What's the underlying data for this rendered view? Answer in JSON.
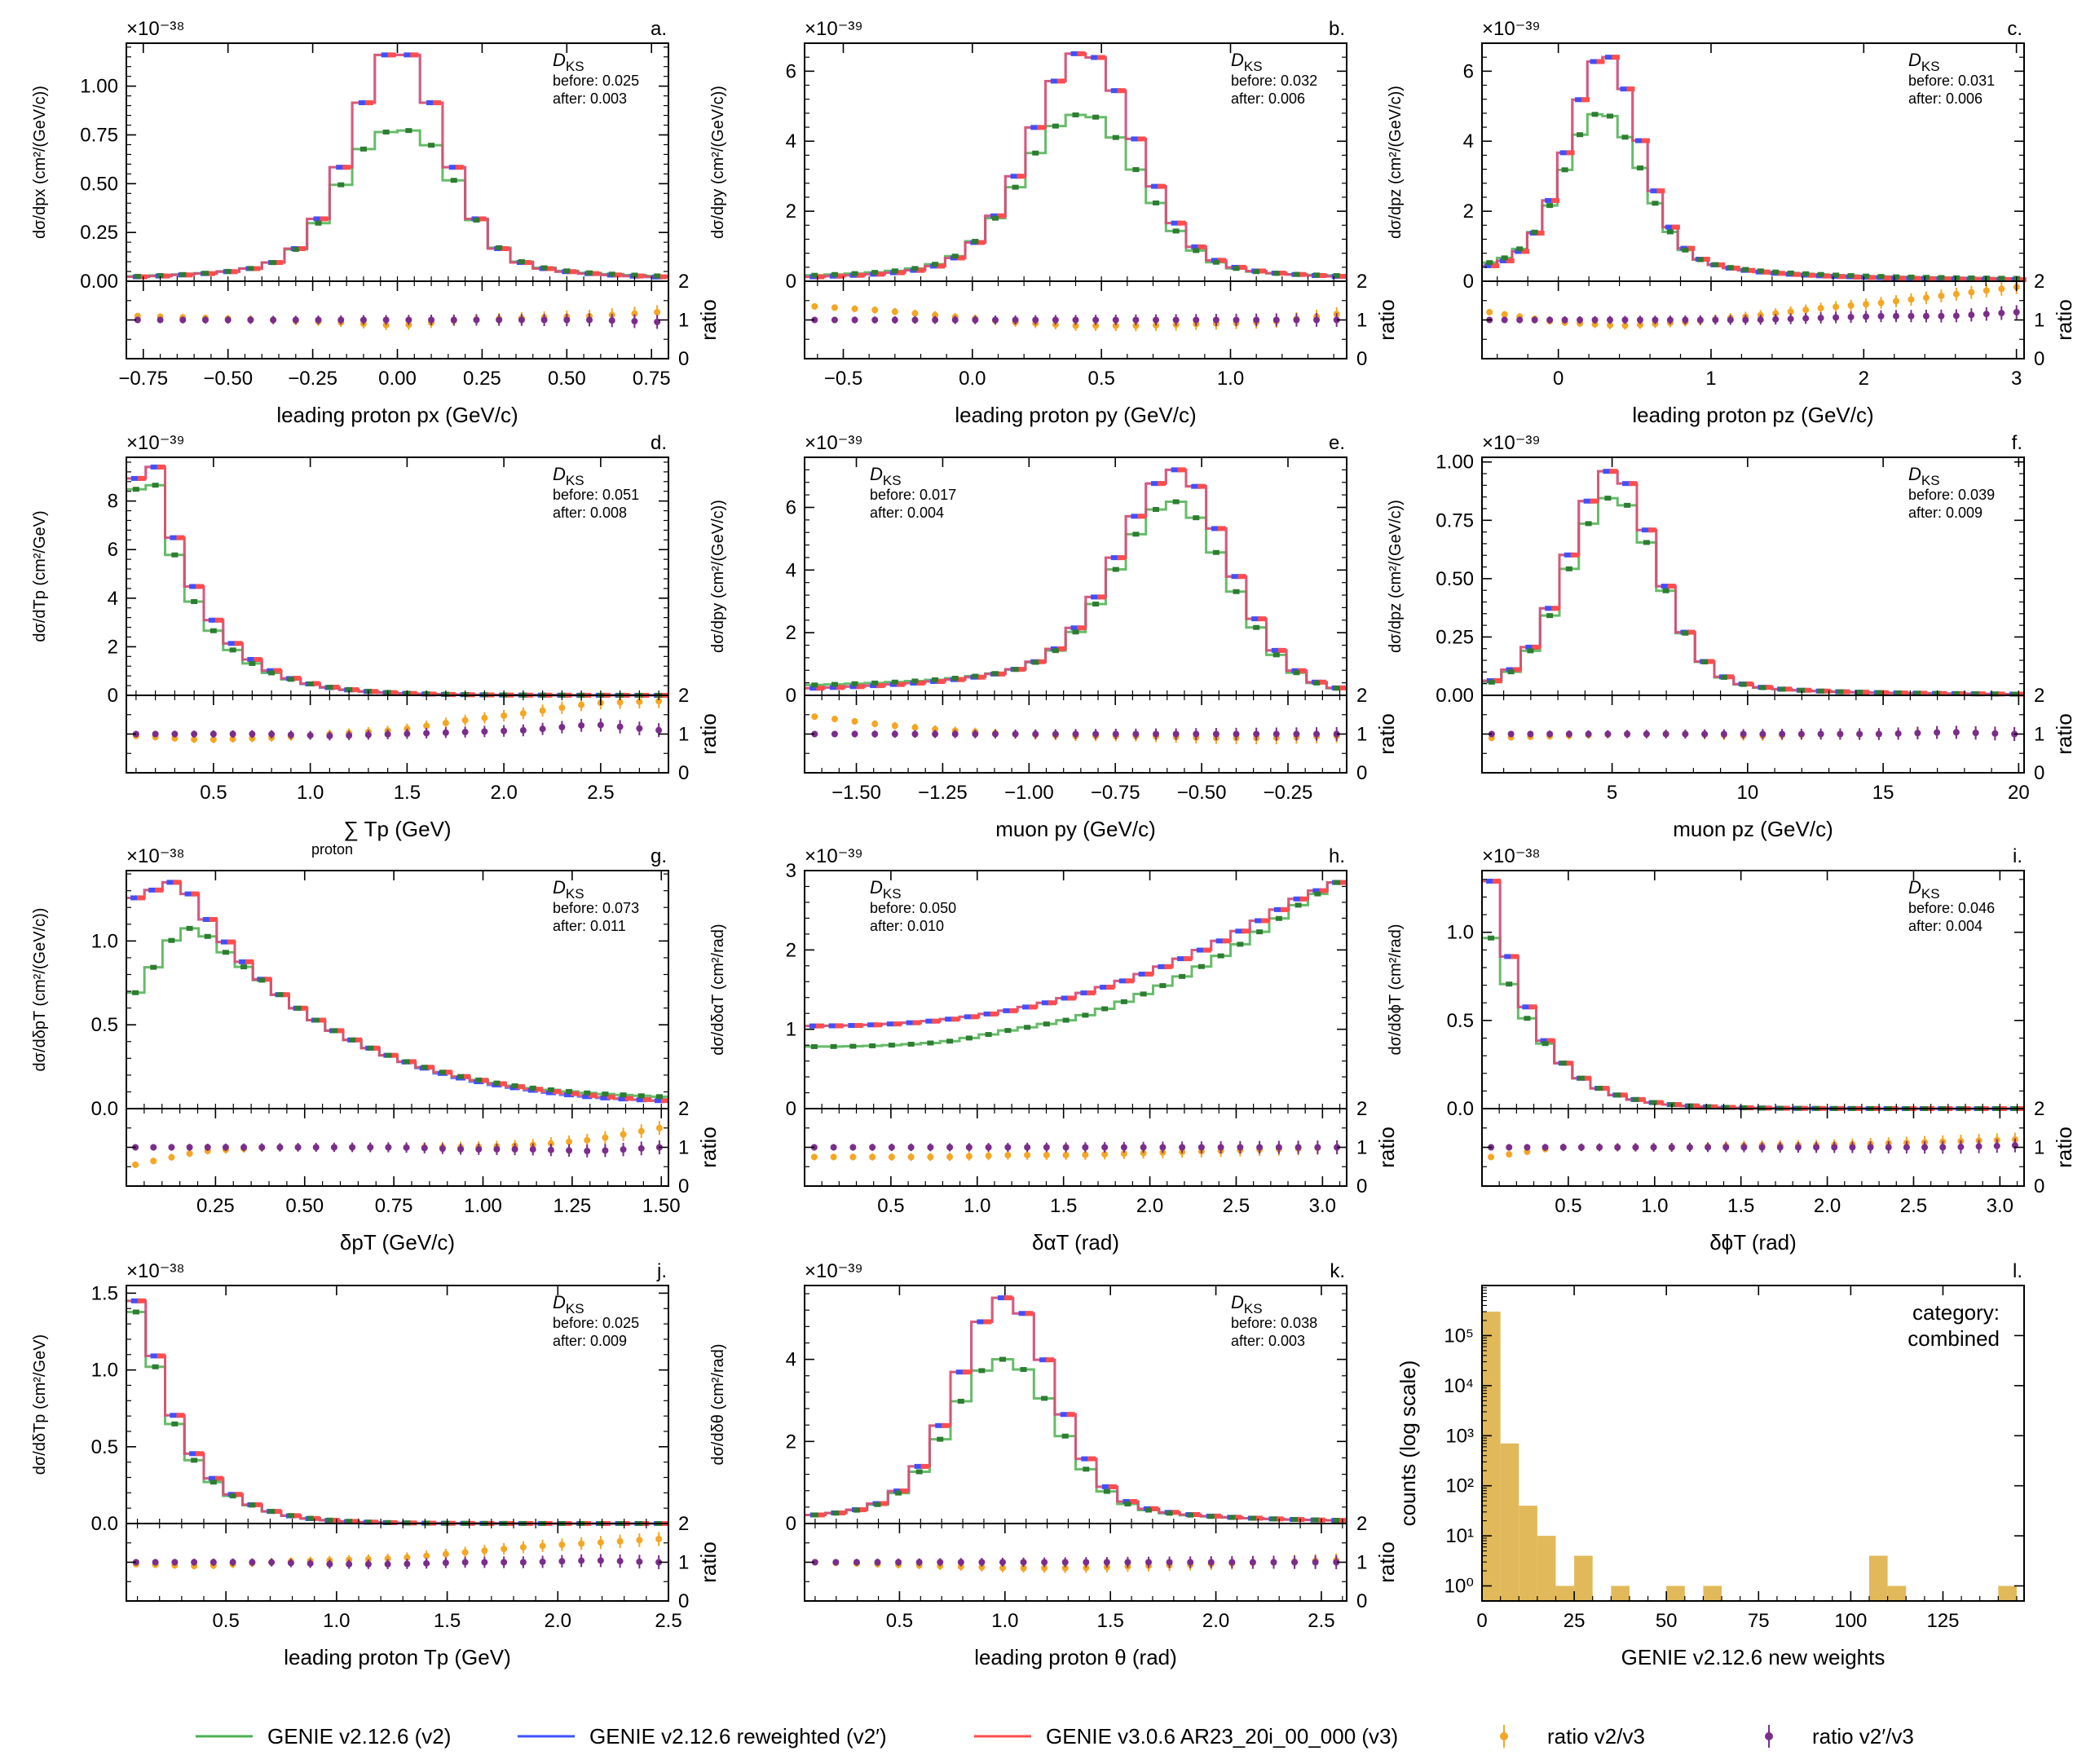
{
  "figure": {
    "ratio_label": "ratio",
    "ks_label": "D",
    "ks_sub": "KS",
    "before_prefix": "before: ",
    "after_prefix": "after: "
  },
  "colors": {
    "v2": "#4caf50",
    "v2_marker": "#2e7d32",
    "v2prime": "#3f51ff",
    "v3": "#ff4d4d",
    "ratio_v2": "#f5a623",
    "ratio_v2prime": "#7b2d8b",
    "hist": "#e2b95a"
  },
  "legend": [
    {
      "label": "GENIE v2.12.6 (v2)",
      "color": "#4caf50",
      "kind": "line"
    },
    {
      "label": "GENIE v2.12.6 reweighted (v2′)",
      "color": "#3f51ff",
      "kind": "line"
    },
    {
      "label": "GENIE v3.0.6 AR23_20i_00_000 (v3)",
      "color": "#ff4d4d",
      "kind": "line"
    },
    {
      "label": "ratio v2/v3",
      "color": "#f5a623",
      "kind": "marker"
    },
    {
      "label": "ratio v2′/v3",
      "color": "#7b2d8b",
      "kind": "marker"
    }
  ],
  "chart_data": [
    {
      "id": "a",
      "panel_label": "a.",
      "type": "line",
      "shape": "peak",
      "mu": 0,
      "sigma": 0.13,
      "tail": 0.22,
      "xlim": [
        -0.8,
        0.8
      ],
      "nbins": 24,
      "xticks": [
        -0.75,
        -0.5,
        -0.25,
        0,
        0.25,
        0.5,
        0.75
      ],
      "xtick_labels": [
        "−0.75",
        "−0.50",
        "−0.25",
        "0.00",
        "0.25",
        "0.50",
        "0.75"
      ],
      "ylim": [
        0,
        1.22
      ],
      "yticks": [
        0,
        0.25,
        0.5,
        0.75,
        1.0
      ],
      "ytick_labels": [
        "0.00",
        "0.25",
        "0.50",
        "0.75",
        "1.00"
      ],
      "peak_v3": 1.16,
      "v2_scale": 0.76,
      "scale_label": "×10⁻³⁸",
      "xlabel": "leading proton px (GeV/c)",
      "ylabel": "dσ/dpx (cm²/(GeV/c))",
      "ks_before": "0.025",
      "ks_after": "0.003",
      "ks_pos": "right",
      "ratio_v2": [
        1.1,
        1.05,
        1.0,
        0.95,
        0.85,
        1.0,
        1.05,
        1.1,
        1.2
      ],
      "ratio_v2prime": [
        1.0,
        1.0,
        1.0,
        1.0,
        1.0,
        1.0,
        1.0,
        1.0,
        0.95
      ]
    },
    {
      "id": "b",
      "panel_label": "b.",
      "type": "line",
      "shape": "peak",
      "mu": 0.43,
      "sigma": 0.2,
      "tail": 0.3,
      "xlim": [
        -0.65,
        1.45
      ],
      "nbins": 27,
      "xticks": [
        -0.5,
        0,
        0.5,
        1.0
      ],
      "xtick_labels": [
        "−0.5",
        "0.0",
        "0.5",
        "1.0"
      ],
      "ylim": [
        0,
        6.8
      ],
      "yticks": [
        0,
        2,
        4,
        6
      ],
      "ytick_labels": [
        "0",
        "2",
        "4",
        "6"
      ],
      "peak_v3": 6.5,
      "v2_scale": 0.86,
      "scale_label": "×10⁻³⁹",
      "xlabel": "leading proton py (GeV/c)",
      "ylabel": "dσ/dpy (cm²/(GeV/c))",
      "ks_before": "0.032",
      "ks_after": "0.006",
      "ks_pos": "right",
      "ratio_v2": [
        1.35,
        1.25,
        1.1,
        0.95,
        0.85,
        0.85,
        0.9,
        0.95,
        1.15
      ],
      "ratio_v2prime": [
        1.0,
        1.0,
        1.0,
        1.0,
        1.0,
        1.0,
        1.0,
        1.0,
        1.0
      ]
    },
    {
      "id": "c",
      "panel_label": "c.",
      "type": "line",
      "shape": "peak",
      "mu": 0.3,
      "sigma": 0.22,
      "tail": 0.45,
      "xlim": [
        -0.5,
        3.05
      ],
      "nbins": 36,
      "xticks": [
        0,
        1,
        2,
        3
      ],
      "xtick_labels": [
        "0",
        "1",
        "2",
        "3"
      ],
      "ylim": [
        0,
        6.8
      ],
      "yticks": [
        0,
        2,
        4,
        6
      ],
      "ytick_labels": [
        "0",
        "2",
        "4",
        "6"
      ],
      "peak_v3": 6.4,
      "v2_scale": 0.85,
      "scale_label": "×10⁻³⁹",
      "xlabel": "leading proton pz (GeV/c)",
      "ylabel": "dσ/dpz (cm²/(GeV/c))",
      "ks_before": "0.031",
      "ks_after": "0.006",
      "ks_pos": "right",
      "ratio_v2": [
        1.2,
        0.95,
        0.85,
        0.95,
        1.1,
        1.3,
        1.45,
        1.65,
        1.85
      ],
      "ratio_v2prime": [
        1.0,
        1.0,
        1.0,
        1.0,
        1.0,
        1.05,
        1.1,
        1.1,
        1.2
      ]
    },
    {
      "id": "d",
      "panel_label": "d.",
      "type": "line",
      "shape": "decay",
      "x0": 0.2,
      "tau": 0.27,
      "xlim": [
        0.05,
        2.85
      ],
      "nbins": 28,
      "xticks": [
        0.5,
        1.0,
        1.5,
        2.0,
        2.5
      ],
      "xtick_labels": [
        "0.5",
        "1.0",
        "1.5",
        "2.0",
        "2.5"
      ],
      "ylim": [
        0,
        9.8
      ],
      "yticks": [
        0,
        2,
        4,
        6,
        8
      ],
      "ytick_labels": [
        "0",
        "2",
        "4",
        "6",
        "8"
      ],
      "peak_v3": 9.4,
      "v2_scale": 0.87,
      "scale_label": "×10⁻³⁹",
      "xlabel": "∑ Tp (GeV)",
      "xlabel_sub": "proton",
      "ylabel": "dσ/dTp (cm²/GeV)",
      "ks_before": "0.051",
      "ks_after": "0.008",
      "ks_pos": "right",
      "ratio_v2": [
        0.95,
        0.85,
        0.9,
        1.0,
        1.1,
        1.35,
        1.55,
        1.8,
        1.85
      ],
      "ratio_v2prime": [
        1.0,
        1.0,
        1.0,
        0.95,
        1.0,
        1.05,
        1.1,
        1.25,
        1.1
      ]
    },
    {
      "id": "e",
      "panel_label": "e.",
      "type": "line",
      "shape": "peak",
      "mu": -0.57,
      "sigma": 0.16,
      "tail": 0.4,
      "rtail": 0.14,
      "xlim": [
        -1.65,
        -0.08
      ],
      "nbins": 27,
      "xticks": [
        -1.5,
        -1.25,
        -1.0,
        -0.75,
        -0.5,
        -0.25
      ],
      "xtick_labels": [
        "−1.50",
        "−1.25",
        "−1.00",
        "−0.75",
        "−0.50",
        "−0.25"
      ],
      "ylim": [
        0,
        7.6
      ],
      "yticks": [
        0,
        2,
        4,
        6
      ],
      "ytick_labels": [
        "0",
        "2",
        "4",
        "6"
      ],
      "peak_v3": 7.2,
      "v2_scale": 0.93,
      "scale_label": "×10⁻³⁹",
      "xlabel": "muon py (GeV/c)",
      "ylabel": "dσ/dpy (cm²/(GeV/c))",
      "ks_before": "0.017",
      "ks_after": "0.004",
      "ks_pos": "left",
      "ratio_v2": [
        1.45,
        1.25,
        1.1,
        1.0,
        0.95,
        0.95,
        0.9,
        0.9,
        0.95
      ],
      "ratio_v2prime": [
        1.0,
        1.0,
        1.0,
        1.0,
        1.0,
        1.0,
        1.0,
        1.0,
        1.0
      ]
    },
    {
      "id": "f",
      "panel_label": "f.",
      "type": "line",
      "shape": "peak",
      "mu": 5.0,
      "sigma": 1.6,
      "tail": 2.2,
      "xlim": [
        0.2,
        20.2
      ],
      "nbins": 28,
      "xticks": [
        5,
        10,
        15,
        20
      ],
      "xtick_labels": [
        "5",
        "10",
        "15",
        "20"
      ],
      "ylim": [
        0,
        1.02
      ],
      "yticks": [
        0,
        0.25,
        0.5,
        0.75,
        1.0
      ],
      "ytick_labels": [
        "0.00",
        "0.25",
        "0.50",
        "0.75",
        "1.00"
      ],
      "peak_v3": 0.96,
      "v2_scale": 0.89,
      "scale_label": "×10⁻³⁹",
      "xlabel": "muon pz (GeV/c)",
      "ylabel": "dσ/dpz (cm²/(GeV/c))",
      "ks_before": "0.039",
      "ks_after": "0.009",
      "ks_pos": "right",
      "ratio_v2": [
        0.9,
        0.95,
        1.0,
        1.0,
        0.95,
        1.0,
        1.0,
        1.05,
        1.0
      ],
      "ratio_v2prime": [
        1.0,
        1.0,
        1.0,
        1.0,
        1.0,
        1.0,
        1.0,
        1.05,
        1.0
      ]
    },
    {
      "id": "g",
      "panel_label": "g.",
      "type": "line",
      "shape": "decay",
      "x0": 0.15,
      "tau": 0.4,
      "xlim": [
        0.0,
        1.52
      ],
      "nbins": 30,
      "xticks": [
        0.25,
        0.5,
        0.75,
        1.0,
        1.25,
        1.5
      ],
      "xtick_labels": [
        "0.25",
        "0.50",
        "0.75",
        "1.00",
        "1.25",
        "1.50"
      ],
      "ylim": [
        0,
        1.42
      ],
      "yticks": [
        0,
        0.5,
        1.0
      ],
      "ytick_labels": [
        "0.0",
        "0.5",
        "1.0"
      ],
      "peak_v3": 1.35,
      "v2_scale": 0.88,
      "scale_label": "×10⁻³⁸",
      "xlabel": "δpT (GeV/c)",
      "ylabel": "dσ/dδpT (cm²/(GeV/c))",
      "ks_before": "0.073",
      "ks_after": "0.011",
      "ks_pos": "right",
      "ratio_v2": [
        0.55,
        0.9,
        1.0,
        1.0,
        1.0,
        1.0,
        1.05,
        1.2,
        1.5
      ],
      "ratio_v2prime": [
        1.0,
        1.0,
        1.0,
        1.0,
        1.0,
        0.95,
        0.95,
        0.9,
        1.0
      ]
    },
    {
      "id": "h",
      "panel_label": "h.",
      "type": "line",
      "shape": "rise",
      "xlim": [
        0.0,
        3.14
      ],
      "nbins": 28,
      "xticks": [
        0.5,
        1.0,
        1.5,
        2.0,
        2.5,
        3.0
      ],
      "xtick_labels": [
        "0.5",
        "1.0",
        "1.5",
        "2.0",
        "2.5",
        "3.0"
      ],
      "ylim": [
        0,
        3.0
      ],
      "yticks": [
        0,
        1,
        2,
        3
      ],
      "ytick_labels": [
        "0",
        "1",
        "2",
        "3"
      ],
      "peak_v3": 2.85,
      "v2_scale": 0.8,
      "scale_label": "×10⁻³⁹",
      "xlabel": "δαT (rad)",
      "ylabel": "dσ/dδαT (cm²/rad)",
      "ks_before": "0.050",
      "ks_after": "0.010",
      "ks_pos": "left",
      "ratio_v2": [
        0.75,
        0.75,
        0.75,
        0.8,
        0.8,
        0.85,
        0.9,
        0.95,
        1.0
      ],
      "ratio_v2prime": [
        1.0,
        1.0,
        1.0,
        1.0,
        1.0,
        1.0,
        1.0,
        1.0,
        1.0
      ]
    },
    {
      "id": "i",
      "panel_label": "i.",
      "type": "line",
      "shape": "decay",
      "x0": 0.05,
      "tau": 0.26,
      "xlim": [
        0.0,
        3.14
      ],
      "nbins": 30,
      "xticks": [
        0.5,
        1.0,
        1.5,
        2.0,
        2.5,
        3.0
      ],
      "xtick_labels": [
        "0.5",
        "1.0",
        "1.5",
        "2.0",
        "2.5",
        "3.0"
      ],
      "ylim": [
        0,
        1.35
      ],
      "yticks": [
        0,
        0.5,
        1.0
      ],
      "ytick_labels": [
        "0.0",
        "0.5",
        "1.0"
      ],
      "peak_v3": 1.29,
      "v2_scale": 0.77,
      "scale_label": "×10⁻³⁸",
      "xlabel": "δϕT (rad)",
      "ylabel": "dσ/dδϕT (cm²/rad)",
      "ks_before": "0.046",
      "ks_after": "0.004",
      "ks_pos": "right",
      "ratio_v2": [
        0.75,
        1.0,
        1.0,
        1.0,
        1.05,
        1.05,
        1.1,
        1.15,
        1.2
      ],
      "ratio_v2prime": [
        1.0,
        1.0,
        1.0,
        1.0,
        1.0,
        1.0,
        1.0,
        1.0,
        1.05
      ]
    },
    {
      "id": "j",
      "panel_label": "j.",
      "type": "line",
      "shape": "decay",
      "x0": 0.12,
      "tau": 0.2,
      "xlim": [
        0.05,
        2.5
      ],
      "nbins": 28,
      "xticks": [
        0.5,
        1.0,
        1.5,
        2.0,
        2.5
      ],
      "xtick_labels": [
        "0.5",
        "1.0",
        "1.5",
        "2.0",
        "2.5"
      ],
      "ylim": [
        0,
        1.55
      ],
      "yticks": [
        0,
        0.5,
        1.0,
        1.5
      ],
      "ytick_labels": [
        "0.0",
        "0.5",
        "1.0",
        "1.5"
      ],
      "peak_v3": 1.45,
      "v2_scale": 0.88,
      "scale_label": "×10⁻³⁸",
      "xlabel": "leading proton Tp (GeV)",
      "ylabel": "dσ/dδTp (cm²/GeV)",
      "ks_before": "0.025",
      "ks_after": "0.009",
      "ks_pos": "right",
      "ratio_v2": [
        0.95,
        0.9,
        1.0,
        1.05,
        1.1,
        1.25,
        1.4,
        1.5,
        1.6
      ],
      "ratio_v2prime": [
        1.0,
        1.0,
        1.0,
        0.95,
        0.95,
        1.0,
        1.0,
        1.05,
        1.0
      ]
    },
    {
      "id": "k",
      "panel_label": "k.",
      "type": "line",
      "shape": "peak",
      "mu": 1.0,
      "sigma": 0.22,
      "tail": 0.38,
      "xlim": [
        0.05,
        2.62
      ],
      "nbins": 26,
      "xticks": [
        0.5,
        1.0,
        1.5,
        2.0,
        2.5
      ],
      "xtick_labels": [
        "0.5",
        "1.0",
        "1.5",
        "2.0",
        "2.5"
      ],
      "ylim": [
        0,
        5.8
      ],
      "yticks": [
        0,
        2,
        4
      ],
      "ytick_labels": [
        "0",
        "2",
        "4"
      ],
      "peak_v3": 5.5,
      "v2_scale": 0.85,
      "scale_label": "×10⁻³⁹",
      "xlabel": "leading proton θ (rad)",
      "ylabel": "dσ/dδθ (cm²/rad)",
      "ks_before": "0.038",
      "ks_after": "0.003",
      "ks_pos": "right",
      "ratio_v2": [
        1.0,
        0.95,
        0.9,
        0.85,
        0.85,
        0.9,
        0.95,
        1.0,
        1.05
      ],
      "ratio_v2prime": [
        1.0,
        1.0,
        1.0,
        1.0,
        1.0,
        1.0,
        1.0,
        1.0,
        1.0
      ]
    },
    {
      "id": "l",
      "panel_label": "l.",
      "type": "bar",
      "xlim": [
        0,
        147
      ],
      "xticks": [
        0,
        25,
        50,
        75,
        100,
        125
      ],
      "xtick_labels": [
        "0",
        "25",
        "50",
        "75",
        "100",
        "125"
      ],
      "ylog": [
        0.5,
        1000000
      ],
      "yticks": [
        1,
        10,
        100,
        1000,
        10000,
        100000
      ],
      "ytick_labels": [
        "10⁰",
        "10¹",
        "10²",
        "10³",
        "10⁴",
        "10⁵"
      ],
      "bin_width": 5,
      "bin_starts": [
        0,
        5,
        10,
        15,
        20,
        25,
        30,
        35,
        50,
        60,
        105,
        110,
        140
      ],
      "counts": [
        300000,
        700,
        40,
        10,
        1,
        4,
        0,
        1,
        1,
        1,
        4,
        1,
        1
      ],
      "xlabel": "GENIE v2.12.6 new weights",
      "ylabel": "counts (log scale)",
      "category_label": "category:",
      "category_value": "combined"
    }
  ]
}
